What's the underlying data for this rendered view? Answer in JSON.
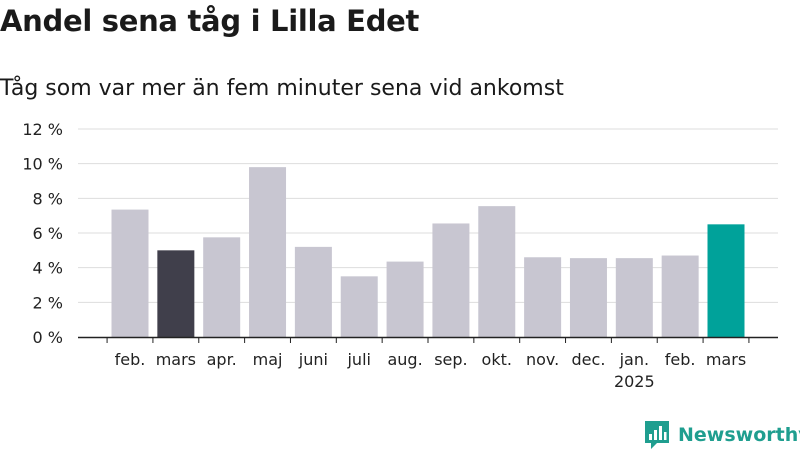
{
  "title": "Andel sena tåg i Lilla Edet",
  "subtitle": "Tåg som var mer än fem minuter sena vid ankomst",
  "brand": {
    "name": "Newsworthy",
    "color": "#1f9e8f",
    "icon": "newsworthy-logo-icon"
  },
  "colors": {
    "default_bar": "#c8c6d1",
    "highlight_prev_year": "#403f4b",
    "highlight_latest": "#00a29a",
    "grid": "#dddddd",
    "axis": "#222222"
  },
  "chart_data": {
    "type": "bar",
    "title": "Andel sena tåg i Lilla Edet",
    "subtitle": "Tåg som var mer än fem minuter sena vid ankomst",
    "xlabel": "",
    "ylabel": "",
    "ylim": [
      0,
      12
    ],
    "yticks": [
      0,
      2,
      4,
      6,
      8,
      10,
      12
    ],
    "ytick_labels": [
      "0 %",
      "2 %",
      "4 %",
      "6 %",
      "8 %",
      "10 %",
      "12 %"
    ],
    "grid": true,
    "categories": [
      "feb.",
      "mars",
      "apr.",
      "maj",
      "juni",
      "juli",
      "aug.",
      "sep.",
      "okt.",
      "nov.",
      "dec.",
      "jan.",
      "feb.",
      "mars"
    ],
    "year_labels": [
      "",
      "",
      "",
      "",
      "",
      "",
      "",
      "",
      "",
      "",
      "",
      "2025",
      "",
      ""
    ],
    "values": [
      7.35,
      5.0,
      5.75,
      9.8,
      5.2,
      3.5,
      4.35,
      6.55,
      7.55,
      4.6,
      4.55,
      4.55,
      4.7,
      6.5
    ],
    "highlight": [
      "default",
      "prev_year",
      "default",
      "default",
      "default",
      "default",
      "default",
      "default",
      "default",
      "default",
      "default",
      "default",
      "default",
      "latest"
    ]
  }
}
